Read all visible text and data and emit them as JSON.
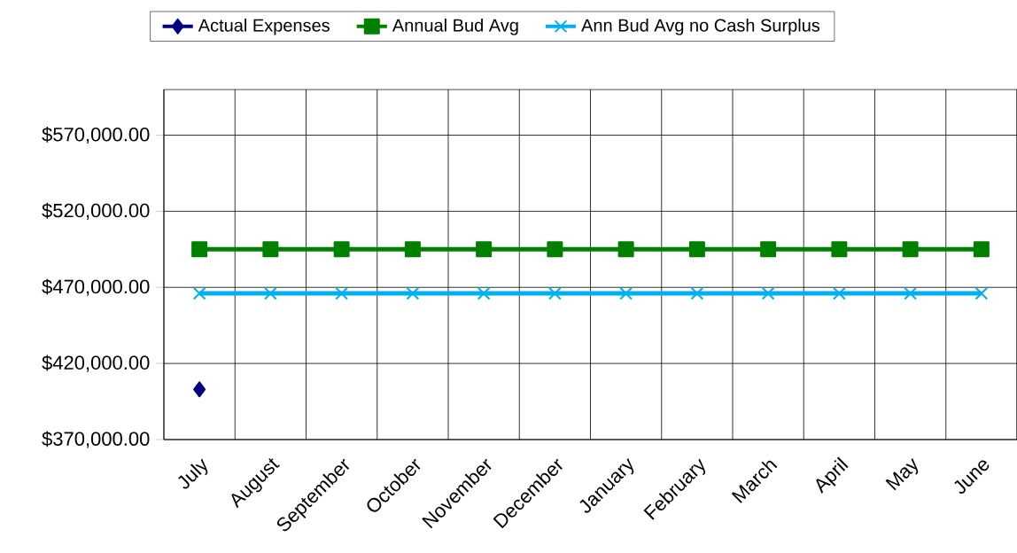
{
  "chart_data": {
    "type": "line",
    "categories": [
      "July",
      "August",
      "September",
      "October",
      "November",
      "December",
      "January",
      "February",
      "March",
      "April",
      "May",
      "June"
    ],
    "series": [
      {
        "name": "Actual Expenses",
        "color": "#000080",
        "marker": "diamond",
        "values": [
          403000,
          null,
          null,
          null,
          null,
          null,
          null,
          null,
          null,
          null,
          null,
          null
        ]
      },
      {
        "name": "Annual Bud Avg",
        "color": "#008000",
        "marker": "square",
        "values": [
          495000,
          495000,
          495000,
          495000,
          495000,
          495000,
          495000,
          495000,
          495000,
          495000,
          495000,
          495000
        ]
      },
      {
        "name": "Ann Bud Avg no Cash Surplus",
        "color": "#00b0f0",
        "marker": "cross",
        "values": [
          466000,
          466000,
          466000,
          466000,
          466000,
          466000,
          466000,
          466000,
          466000,
          466000,
          466000,
          466000
        ]
      }
    ],
    "ylim": [
      370000,
      600000
    ],
    "yticks": [
      {
        "value": 370000,
        "label": "$370,000.00"
      },
      {
        "value": 420000,
        "label": "$420,000.00"
      },
      {
        "value": 470000,
        "label": "$470,000.00"
      },
      {
        "value": 520000,
        "label": "$520,000.00"
      },
      {
        "value": 570000,
        "label": "$570,000.00"
      }
    ],
    "grid": true,
    "legend": "top",
    "line_style": "solid"
  }
}
